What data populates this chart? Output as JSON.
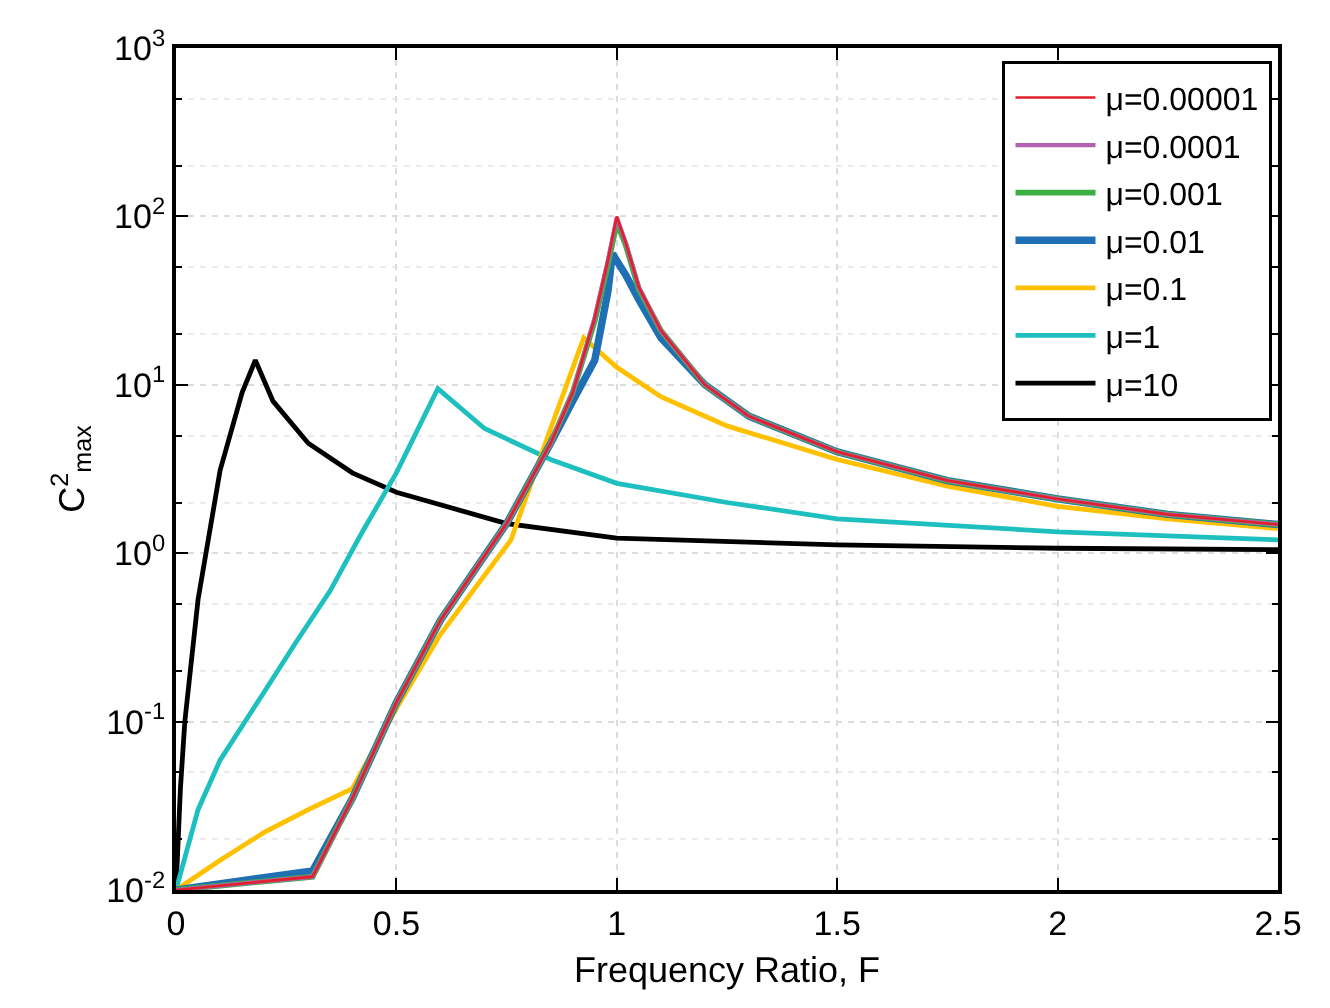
{
  "chart_data": {
    "type": "line",
    "xlabel": "Frequency Ratio, F",
    "ylabel": "C$^{2}$$_{max}$",
    "xlim": [
      0,
      2.5
    ],
    "xticks": [
      0,
      0.5,
      1,
      1.5,
      2,
      2.5
    ],
    "ylim": [
      0.01,
      1000
    ],
    "log": true,
    "yticks": [
      {
        "value": 0.01,
        "label": "10$^{-2}$"
      },
      {
        "value": 0.1,
        "label": "10$^{-1}$"
      },
      {
        "value": 1,
        "label": "10$^{0}$"
      },
      {
        "value": 10,
        "label": "10$^{1}$"
      },
      {
        "value": 100,
        "label": "10$^{2}$"
      },
      {
        "value": 1000,
        "label": "10$^{3}$"
      }
    ],
    "grid": true,
    "legend": "top right",
    "line_style": "solid",
    "marker": "none",
    "series": [
      {
        "name": "μ=0.00001",
        "color": "#e0202a",
        "x": [
          0,
          0.31,
          0.4,
          0.5,
          0.6,
          0.75,
          0.85,
          0.9,
          0.95,
          0.98,
          1.0,
          1.02,
          1.05,
          1.1,
          1.2,
          1.3,
          1.5,
          1.75,
          2,
          2.25,
          2.5
        ],
        "values": [
          0.01,
          0.012,
          0.035,
          0.13,
          0.4,
          1.5,
          4.5,
          9,
          25,
          55,
          100,
          70,
          38,
          21,
          10,
          6.5,
          4,
          2.7,
          2.1,
          1.7,
          1.48
        ]
      },
      {
        "name": "μ=0.0001",
        "color": "#b460b0",
        "x": [
          0,
          0.31,
          0.4,
          0.5,
          0.6,
          0.75,
          0.85,
          0.9,
          0.95,
          0.98,
          1.0,
          1.02,
          1.05,
          1.1,
          1.2,
          1.3,
          1.5,
          1.75,
          2,
          2.25,
          2.5
        ],
        "values": [
          0.01,
          0.012,
          0.035,
          0.13,
          0.4,
          1.5,
          4.5,
          9,
          25,
          55,
          99,
          70,
          38,
          21,
          10,
          6.5,
          4,
          2.7,
          2.1,
          1.7,
          1.48
        ]
      },
      {
        "name": "μ=0.001",
        "color": "#3cb043",
        "x": [
          0,
          0.31,
          0.4,
          0.5,
          0.6,
          0.75,
          0.85,
          0.9,
          0.95,
          0.98,
          1.0,
          1.02,
          1.05,
          1.1,
          1.2,
          1.3,
          1.5,
          1.75,
          2,
          2.25,
          2.5
        ],
        "values": [
          0.01,
          0.012,
          0.035,
          0.13,
          0.4,
          1.5,
          4.5,
          9,
          24,
          52,
          92,
          68,
          37,
          21,
          10,
          6.5,
          4,
          2.7,
          2.1,
          1.7,
          1.48
        ]
      },
      {
        "name": "μ=0.01",
        "color": "#1f6fb5",
        "x": [
          0,
          0.31,
          0.4,
          0.5,
          0.6,
          0.75,
          0.85,
          0.9,
          0.95,
          0.98,
          0.99,
          1.02,
          1.05,
          1.1,
          1.2,
          1.3,
          1.5,
          1.75,
          2,
          2.25,
          2.5
        ],
        "values": [
          0.01,
          0.013,
          0.035,
          0.13,
          0.4,
          1.5,
          4.5,
          8,
          14,
          36,
          60,
          45,
          32,
          19,
          10,
          6.5,
          4,
          2.7,
          2.1,
          1.7,
          1.48
        ]
      },
      {
        "name": "μ=0.1",
        "color": "#ffc000",
        "x": [
          0,
          0.1,
          0.2,
          0.3,
          0.4,
          0.5,
          0.6,
          0.76,
          0.85,
          0.925,
          1.0,
          1.1,
          1.25,
          1.5,
          1.75,
          2,
          2.25,
          2.5
        ],
        "values": [
          0.01,
          0.015,
          0.022,
          0.03,
          0.04,
          0.12,
          0.33,
          1.2,
          5.5,
          19,
          12.7,
          8.5,
          5.7,
          3.6,
          2.5,
          1.9,
          1.6,
          1.4
        ]
      },
      {
        "name": "μ=1",
        "color": "#1ebfbf",
        "x": [
          0,
          0.05,
          0.1,
          0.2,
          0.27,
          0.35,
          0.42,
          0.5,
          0.594,
          0.7,
          0.85,
          1,
          1.25,
          1.5,
          2,
          2.5
        ],
        "values": [
          0.01,
          0.03,
          0.059,
          0.15,
          0.29,
          0.6,
          1.3,
          3,
          9.5,
          5.5,
          3.6,
          2.6,
          2,
          1.6,
          1.34,
          1.2
        ]
      },
      {
        "name": "μ=10",
        "color": "#000000",
        "x": [
          0,
          0.01,
          0.02,
          0.05,
          0.1,
          0.15,
          0.18,
          0.22,
          0.3,
          0.4,
          0.5,
          0.75,
          1,
          1.5,
          2,
          2.5
        ],
        "values": [
          0.01,
          0.04,
          0.1,
          0.53,
          3.1,
          9,
          14,
          8,
          4.5,
          3,
          2.3,
          1.5,
          1.23,
          1.12,
          1.07,
          1.05
        ]
      }
    ]
  }
}
